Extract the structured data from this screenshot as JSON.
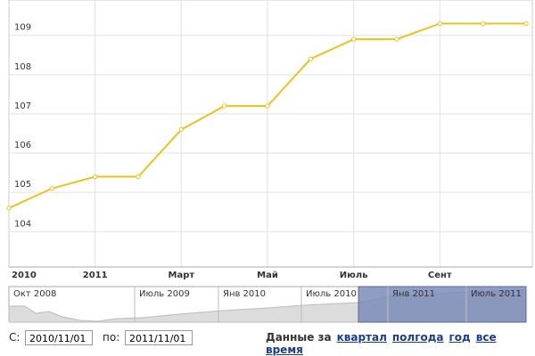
{
  "chart_data": {
    "type": "line",
    "categories": [
      "2010",
      null,
      "2011",
      null,
      "Март",
      null,
      "Май",
      null,
      "Июль",
      null,
      "Сент",
      null,
      null
    ],
    "values": [
      104.6,
      105.1,
      105.4,
      105.4,
      106.6,
      107.2,
      107.2,
      108.4,
      108.9,
      108.9,
      109.3,
      109.3,
      109.3
    ],
    "color": "#ecc31c",
    "ylim": [
      103.1,
      109.9
    ],
    "yticks": [
      104,
      105,
      106,
      107,
      108,
      109
    ],
    "grid": true
  },
  "navigator": {
    "labels": [
      "Окт 2008",
      "Июль 2009",
      "Янв 2010",
      "Июль 2010",
      "Янв 2011",
      "Июль 2011"
    ]
  },
  "controls": {
    "from_label": "С:",
    "from": "2010/11/01",
    "to_label": "по:",
    "to": "2011/11/01",
    "period_label": "Данные за",
    "periods": [
      "квартал",
      "полгода",
      "год",
      "все время"
    ]
  }
}
